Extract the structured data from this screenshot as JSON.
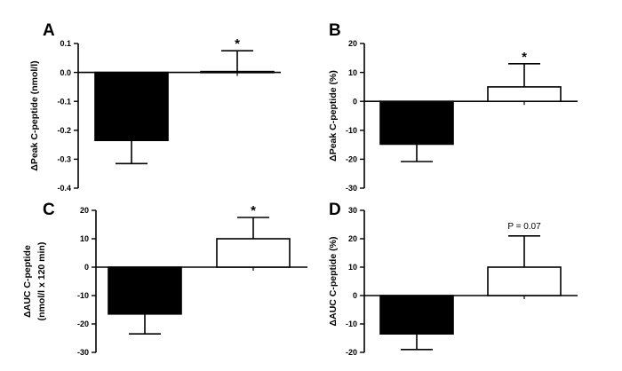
{
  "chart_data": [
    {
      "type": "bar",
      "panel": "A",
      "ylabel": "ΔPeak C-peptide (nmol/l)",
      "ylim": [
        -0.4,
        0.1
      ],
      "yticks": [
        "0.1",
        "0.0",
        "-0.1",
        "-0.2",
        "-0.3",
        "-0.4"
      ],
      "tickvals": [
        0.1,
        0.0,
        -0.1,
        -0.2,
        -0.3,
        -0.4
      ],
      "values": [
        -0.235,
        0.003
      ],
      "errors": [
        0.08,
        0.072
      ],
      "fills": [
        "#000000",
        "#ffffff"
      ],
      "annotation": "*"
    },
    {
      "type": "bar",
      "panel": "B",
      "ylabel": "ΔPeak C-peptide (%)",
      "ylim": [
        -30,
        20
      ],
      "yticks": [
        "20",
        "10",
        "0",
        "-10",
        "-20",
        "-30"
      ],
      "tickvals": [
        20,
        10,
        0,
        -10,
        -20,
        -30
      ],
      "values": [
        -14.8,
        5
      ],
      "errors": [
        6,
        8
      ],
      "fills": [
        "#000000",
        "#ffffff"
      ],
      "annotation": "*"
    },
    {
      "type": "bar",
      "panel": "C",
      "ylabel": "ΔAUC C-peptide",
      "ylabel2": "(nmol/l x 120 min)",
      "ylim": [
        -30,
        20
      ],
      "yticks": [
        "20",
        "10",
        "0",
        "-10",
        "-20",
        "-30"
      ],
      "tickvals": [
        20,
        10,
        0,
        -10,
        -20,
        -30
      ],
      "values": [
        -16.5,
        10
      ],
      "errors": [
        7,
        7.5
      ],
      "fills": [
        "#000000",
        "#ffffff"
      ],
      "annotation": "*"
    },
    {
      "type": "bar",
      "panel": "D",
      "ylabel": "ΔAUC C-peptide (%)",
      "ylim": [
        -20,
        30
      ],
      "yticks": [
        "30",
        "20",
        "10",
        "0",
        "-10",
        "-20"
      ],
      "tickvals": [
        30,
        20,
        10,
        0,
        -10,
        -20
      ],
      "values": [
        -13.5,
        10
      ],
      "errors": [
        5.5,
        11
      ],
      "fills": [
        "#000000",
        "#ffffff"
      ],
      "annotation": "P = 0.07"
    }
  ]
}
